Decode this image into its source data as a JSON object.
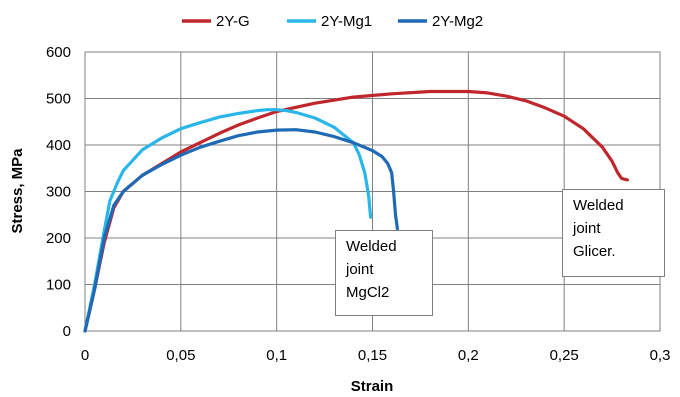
{
  "chart_data": {
    "type": "line",
    "title": "",
    "xlabel": "Strain",
    "ylabel": "Stress,  MPa",
    "xlim": [
      0,
      0.3
    ],
    "ylim": [
      0,
      600
    ],
    "xticks": [
      "0",
      "0,05",
      "0,1",
      "0,15",
      "0,2",
      "0,25",
      "0,3"
    ],
    "yticks": [
      "0",
      "100",
      "200",
      "300",
      "400",
      "500",
      "600"
    ],
    "grid": true,
    "legend_position": "top",
    "series": [
      {
        "name": "2Y-G",
        "color": "#c0272d",
        "points": [
          [
            0,
            0
          ],
          [
            0.005,
            90
          ],
          [
            0.01,
            190
          ],
          [
            0.015,
            265
          ],
          [
            0.02,
            300
          ],
          [
            0.03,
            335
          ],
          [
            0.04,
            360
          ],
          [
            0.05,
            385
          ],
          [
            0.06,
            405
          ],
          [
            0.07,
            425
          ],
          [
            0.08,
            443
          ],
          [
            0.09,
            458
          ],
          [
            0.1,
            472
          ],
          [
            0.12,
            490
          ],
          [
            0.14,
            503
          ],
          [
            0.16,
            510
          ],
          [
            0.18,
            515
          ],
          [
            0.2,
            515
          ],
          [
            0.21,
            512
          ],
          [
            0.22,
            505
          ],
          [
            0.23,
            495
          ],
          [
            0.24,
            480
          ],
          [
            0.25,
            462
          ],
          [
            0.26,
            435
          ],
          [
            0.27,
            395
          ],
          [
            0.275,
            365
          ],
          [
            0.278,
            340
          ],
          [
            0.28,
            328
          ],
          [
            0.283,
            325
          ]
        ]
      },
      {
        "name": "2Y-Mg1",
        "color": "#29b6ea",
        "points": [
          [
            0,
            0
          ],
          [
            0.005,
            100
          ],
          [
            0.01,
            215
          ],
          [
            0.013,
            280
          ],
          [
            0.017,
            320
          ],
          [
            0.02,
            345
          ],
          [
            0.03,
            390
          ],
          [
            0.04,
            415
          ],
          [
            0.05,
            435
          ],
          [
            0.06,
            448
          ],
          [
            0.07,
            460
          ],
          [
            0.08,
            468
          ],
          [
            0.09,
            474
          ],
          [
            0.095,
            476
          ],
          [
            0.1,
            476
          ],
          [
            0.105,
            474
          ],
          [
            0.11,
            470
          ],
          [
            0.12,
            458
          ],
          [
            0.13,
            438
          ],
          [
            0.14,
            405
          ],
          [
            0.143,
            380
          ],
          [
            0.146,
            340
          ],
          [
            0.148,
            290
          ],
          [
            0.149,
            245
          ]
        ]
      },
      {
        "name": "2Y-Mg2",
        "color": "#1f6ab5",
        "points": [
          [
            0,
            0
          ],
          [
            0.005,
            90
          ],
          [
            0.01,
            200
          ],
          [
            0.015,
            270
          ],
          [
            0.02,
            300
          ],
          [
            0.03,
            335
          ],
          [
            0.04,
            358
          ],
          [
            0.05,
            378
          ],
          [
            0.06,
            395
          ],
          [
            0.07,
            408
          ],
          [
            0.08,
            420
          ],
          [
            0.09,
            428
          ],
          [
            0.1,
            432
          ],
          [
            0.11,
            433
          ],
          [
            0.12,
            428
          ],
          [
            0.13,
            418
          ],
          [
            0.14,
            405
          ],
          [
            0.15,
            388
          ],
          [
            0.155,
            375
          ],
          [
            0.158,
            360
          ],
          [
            0.16,
            340
          ],
          [
            0.161,
            300
          ],
          [
            0.162,
            250
          ],
          [
            0.163,
            220
          ]
        ]
      }
    ],
    "annotations": [
      {
        "lines": [
          "Welded",
          "joint",
          "MgCl2"
        ]
      },
      {
        "lines": [
          "Welded",
          "joint",
          "Glicer."
        ]
      }
    ]
  }
}
